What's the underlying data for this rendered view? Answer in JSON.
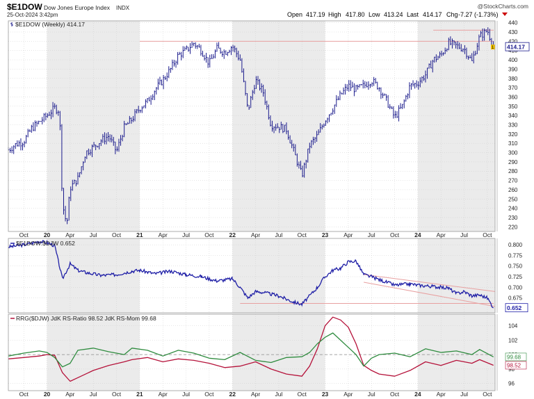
{
  "header": {
    "symbol": "$E1DOW",
    "name": "Dow Jones Europe Index",
    "exchange": "INDX",
    "date": "25-Oct-2024 3:42pm",
    "watermark": "@StockCharts.com",
    "open_label": "Open",
    "open": "417.19",
    "high_label": "High",
    "high": "417.80",
    "low_label": "Low",
    "low": "413.24",
    "last_label": "Last",
    "last": "414.17",
    "chg_label": "Chg",
    "chg": "-7.27 (-1.73%)"
  },
  "colors": {
    "price": "#1a1a8c",
    "ratio_line": "#1e1ea6",
    "rs_ratio": "#b5123a",
    "rs_momentum": "#2e8b3e",
    "trendline": "#e8a0a0",
    "shade": "#ebebeb",
    "grid": "#cccccc",
    "down_arrow": "#cc0000"
  },
  "chart_data": [
    {
      "type": "ohlc",
      "panel": "price",
      "legend": "$E1DOW (Weekly) 414.17",
      "last_value_label": "414.17",
      "marker": "1",
      "y_ticks": [
        220,
        230,
        240,
        250,
        260,
        270,
        280,
        290,
        300,
        310,
        320,
        330,
        340,
        350,
        360,
        370,
        380,
        390,
        400,
        410,
        420,
        430,
        440
      ],
      "ylim": [
        215,
        442
      ],
      "x_labels": [
        "Oct",
        "20",
        "Apr",
        "Jul",
        "Oct",
        "21",
        "Apr",
        "Jul",
        "Oct",
        "22",
        "Apr",
        "Jul",
        "Oct",
        "23",
        "Apr",
        "Jul",
        "Oct",
        "24",
        "Apr",
        "Jul",
        "Oct"
      ],
      "x_label_dates": [
        "2019-10",
        "2020-01",
        "2020-04",
        "2020-07",
        "2020-10",
        "2021-01",
        "2021-04",
        "2021-07",
        "2021-10",
        "2022-01",
        "2022-04",
        "2022-07",
        "2022-10",
        "2023-01",
        "2023-04",
        "2023-07",
        "2023-10",
        "2024-01",
        "2024-04",
        "2024-07",
        "2024-10"
      ],
      "x_start": "2019-08",
      "x_end": "2024-11",
      "resistance_level": 420,
      "shaded_years": [
        "2020",
        "2022",
        "2024"
      ],
      "closes": [
        [
          "2019-08",
          303
        ],
        [
          "2019-09",
          309
        ],
        [
          "2019-10",
          312
        ],
        [
          "2019-11",
          326
        ],
        [
          "2019-12",
          333
        ],
        [
          "2020-01",
          340
        ],
        [
          "2020-02",
          348
        ],
        [
          "2020-02-20",
          345
        ],
        [
          "2020-03",
          245
        ],
        [
          "2020-03-18",
          222
        ],
        [
          "2020-04",
          262
        ],
        [
          "2020-05",
          272
        ],
        [
          "2020-06",
          300
        ],
        [
          "2020-07",
          306
        ],
        [
          "2020-08",
          313
        ],
        [
          "2020-09",
          318
        ],
        [
          "2020-10",
          301
        ],
        [
          "2020-11",
          327
        ],
        [
          "2020-12",
          336
        ],
        [
          "2021-01",
          348
        ],
        [
          "2021-02",
          355
        ],
        [
          "2021-03",
          368
        ],
        [
          "2021-04",
          378
        ],
        [
          "2021-05",
          390
        ],
        [
          "2021-06",
          405
        ],
        [
          "2021-07",
          410
        ],
        [
          "2021-08",
          418
        ],
        [
          "2021-09",
          410
        ],
        [
          "2021-10",
          396
        ],
        [
          "2021-11",
          412
        ],
        [
          "2021-12",
          408
        ],
        [
          "2022-01",
          415
        ],
        [
          "2022-02",
          400
        ],
        [
          "2022-03",
          345
        ],
        [
          "2022-04",
          378
        ],
        [
          "2022-05",
          365
        ],
        [
          "2022-06",
          330
        ],
        [
          "2022-07",
          328
        ],
        [
          "2022-08",
          325
        ],
        [
          "2022-09",
          300
        ],
        [
          "2022-10",
          275
        ],
        [
          "2022-11",
          308
        ],
        [
          "2022-12",
          318
        ],
        [
          "2023-01",
          335
        ],
        [
          "2023-02",
          348
        ],
        [
          "2023-03",
          362
        ],
        [
          "2023-04",
          372
        ],
        [
          "2023-05",
          368
        ],
        [
          "2023-06",
          372
        ],
        [
          "2023-07",
          378
        ],
        [
          "2023-08",
          370
        ],
        [
          "2023-09",
          355
        ],
        [
          "2023-10",
          338
        ],
        [
          "2023-11",
          350
        ],
        [
          "2023-12",
          372
        ],
        [
          "2024-01",
          375
        ],
        [
          "2024-02",
          384
        ],
        [
          "2024-03",
          400
        ],
        [
          "2024-04",
          405
        ],
        [
          "2024-05",
          418
        ],
        [
          "2024-06",
          415
        ],
        [
          "2024-07",
          412
        ],
        [
          "2024-08",
          398
        ],
        [
          "2024-09",
          425
        ],
        [
          "2024-10-01",
          432
        ],
        [
          "2024-10-25",
          414.17
        ]
      ]
    },
    {
      "type": "line",
      "panel": "ratio",
      "legend": "$E1DOW:$DJW 0.652",
      "last_value_label": "0.652",
      "y_ticks": [
        0.675,
        0.7,
        0.725,
        0.75,
        0.775,
        0.8
      ],
      "y_tick_labels": [
        "0.675",
        "0.700",
        "0.725",
        "0.750",
        "0.775",
        "0.800"
      ],
      "ylim": [
        0.64,
        0.815
      ],
      "support_level": 0.662,
      "trend_channel": [
        {
          "from": [
            "2023-06",
            0.73
          ],
          "to": [
            "2024-11",
            0.69
          ]
        },
        {
          "from": [
            "2023-06",
            0.712
          ],
          "to": [
            "2024-11",
            0.655
          ]
        }
      ],
      "series": [
        {
          "values": [
            [
              "2019-08",
              0.795
            ],
            [
              "2019-10",
              0.8
            ],
            [
              "2019-12",
              0.808
            ],
            [
              "2020-01",
              0.805
            ],
            [
              "2020-02",
              0.798
            ],
            [
              "2020-03",
              0.72
            ],
            [
              "2020-04",
              0.755
            ],
            [
              "2020-05",
              0.74
            ],
            [
              "2020-06",
              0.735
            ],
            [
              "2020-08",
              0.728
            ],
            [
              "2020-10",
              0.73
            ],
            [
              "2020-12",
              0.738
            ],
            [
              "2021-01",
              0.74
            ],
            [
              "2021-03",
              0.732
            ],
            [
              "2021-05",
              0.738
            ],
            [
              "2021-07",
              0.73
            ],
            [
              "2021-09",
              0.725
            ],
            [
              "2021-11",
              0.715
            ],
            [
              "2022-01",
              0.72
            ],
            [
              "2022-02",
              0.7
            ],
            [
              "2022-03",
              0.675
            ],
            [
              "2022-04",
              0.69
            ],
            [
              "2022-05",
              0.688
            ],
            [
              "2022-07",
              0.68
            ],
            [
              "2022-08",
              0.672
            ],
            [
              "2022-09",
              0.665
            ],
            [
              "2022-10",
              0.66
            ],
            [
              "2022-11",
              0.68
            ],
            [
              "2022-12",
              0.7
            ],
            [
              "2023-01",
              0.725
            ],
            [
              "2023-02",
              0.74
            ],
            [
              "2023-03",
              0.745
            ],
            [
              "2023-04",
              0.76
            ],
            [
              "2023-05",
              0.762
            ],
            [
              "2023-06",
              0.73
            ],
            [
              "2023-07",
              0.725
            ],
            [
              "2023-08",
              0.718
            ],
            [
              "2023-09",
              0.712
            ],
            [
              "2023-10",
              0.705
            ],
            [
              "2023-12",
              0.708
            ],
            [
              "2024-01",
              0.705
            ],
            [
              "2024-03",
              0.702
            ],
            [
              "2024-05",
              0.698
            ],
            [
              "2024-06",
              0.685
            ],
            [
              "2024-07",
              0.69
            ],
            [
              "2024-08",
              0.68
            ],
            [
              "2024-09",
              0.682
            ],
            [
              "2024-10-01",
              0.675
            ],
            [
              "2024-10-25",
              0.652
            ]
          ]
        }
      ]
    },
    {
      "type": "line",
      "panel": "rrg",
      "legend": "RRG($DJW) JdK RS-Ratio 98.52 JdK RS-Mom 99.68",
      "y_ticks": [
        96,
        98,
        100,
        102,
        104
      ],
      "ylim": [
        95,
        105.6
      ],
      "reference_level": 100,
      "series": [
        {
          "name": "JdK RS-Ratio",
          "last": "98.52",
          "values": [
            [
              "2019-08",
              99.4
            ],
            [
              "2019-10",
              99.6
            ],
            [
              "2019-12",
              99.8
            ],
            [
              "2020-01",
              100.0
            ],
            [
              "2020-02",
              99.9
            ],
            [
              "2020-03",
              97.5
            ],
            [
              "2020-04",
              96.3
            ],
            [
              "2020-05",
              96.8
            ],
            [
              "2020-07",
              97.8
            ],
            [
              "2020-09",
              98.5
            ],
            [
              "2020-11",
              99.0
            ],
            [
              "2020-12",
              99.3
            ],
            [
              "2021-02",
              99.6
            ],
            [
              "2021-04",
              99.0
            ],
            [
              "2021-06",
              99.4
            ],
            [
              "2021-08",
              99.2
            ],
            [
              "2021-10",
              98.8
            ],
            [
              "2021-12",
              98.2
            ],
            [
              "2022-02",
              98.4
            ],
            [
              "2022-04",
              99.0
            ],
            [
              "2022-06",
              98.0
            ],
            [
              "2022-08",
              97.3
            ],
            [
              "2022-10",
              97.0
            ],
            [
              "2022-11",
              98.4
            ],
            [
              "2022-12",
              100.8
            ],
            [
              "2023-01",
              104.0
            ],
            [
              "2023-02",
              105.2
            ],
            [
              "2023-03",
              104.8
            ],
            [
              "2023-04",
              103.8
            ],
            [
              "2023-05",
              101.5
            ],
            [
              "2023-06",
              98.5
            ],
            [
              "2023-07",
              97.8
            ],
            [
              "2023-08",
              97.3
            ],
            [
              "2023-10",
              97.0
            ],
            [
              "2023-12",
              97.8
            ],
            [
              "2024-02",
              99.0
            ],
            [
              "2024-04",
              98.5
            ],
            [
              "2024-06",
              99.2
            ],
            [
              "2024-08",
              98.8
            ],
            [
              "2024-09",
              99.3
            ],
            [
              "2024-10-25",
              98.52
            ]
          ]
        },
        {
          "name": "JdK RS-Mom",
          "last": "99.68",
          "values": [
            [
              "2019-08",
              99.8
            ],
            [
              "2019-10",
              100.2
            ],
            [
              "2019-12",
              100.5
            ],
            [
              "2020-01",
              100.3
            ],
            [
              "2020-02",
              99.6
            ],
            [
              "2020-03",
              98.3
            ],
            [
              "2020-04",
              98.8
            ],
            [
              "2020-05",
              100.6
            ],
            [
              "2020-07",
              100.9
            ],
            [
              "2020-09",
              100.4
            ],
            [
              "2020-11",
              100.0
            ],
            [
              "2020-12",
              100.9
            ],
            [
              "2021-02",
              100.6
            ],
            [
              "2021-04",
              99.8
            ],
            [
              "2021-06",
              100.6
            ],
            [
              "2021-08",
              100.2
            ],
            [
              "2021-10",
              99.5
            ],
            [
              "2021-12",
              99.3
            ],
            [
              "2022-02",
              100.3
            ],
            [
              "2022-04",
              99.2
            ],
            [
              "2022-06",
              98.9
            ],
            [
              "2022-08",
              99.6
            ],
            [
              "2022-10",
              99.7
            ],
            [
              "2022-11",
              100.3
            ],
            [
              "2022-12",
              101.5
            ],
            [
              "2023-01",
              102.4
            ],
            [
              "2023-02",
              103.0
            ],
            [
              "2023-03",
              102.0
            ],
            [
              "2023-04",
              101.0
            ],
            [
              "2023-05",
              100.0
            ],
            [
              "2023-06",
              98.4
            ],
            [
              "2023-07",
              99.5
            ],
            [
              "2023-08",
              100.0
            ],
            [
              "2023-10",
              100.2
            ],
            [
              "2023-12",
              99.7
            ],
            [
              "2024-02",
              100.8
            ],
            [
              "2024-04",
              100.3
            ],
            [
              "2024-06",
              100.5
            ],
            [
              "2024-08",
              100.0
            ],
            [
              "2024-09",
              100.7
            ],
            [
              "2024-10-25",
              99.68
            ]
          ]
        }
      ]
    }
  ]
}
